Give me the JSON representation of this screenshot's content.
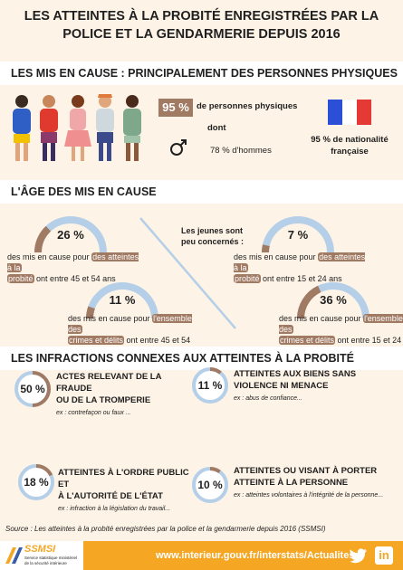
{
  "title": {
    "line1": "LES ATTEINTES À LA PROBITÉ ENREGISTRÉES PAR LA",
    "line2": "POLICE ET LA GENDARMERIE DEPUIS 2016"
  },
  "section1": {
    "heading": "LES MIS EN CAUSE : PRINCIPALEMENT DES PERSONNES PHYSIQUES",
    "physical_pct": "95 %",
    "physical_label": "de personnes physiques",
    "dont": "dont",
    "men_label": "78 % d'hommes",
    "nationality_line1": "95 % de nationalité",
    "nationality_line2": "française"
  },
  "section2": {
    "heading": "L'ÂGE DES MIS EN CAUSE",
    "youth_line1": "Les jeunes sont",
    "youth_line2": "peu concernés :",
    "gauges": [
      {
        "value": "26 %",
        "fraction": 0.26,
        "pre": "des mis en cause pour",
        "hl1": "des atteintes à la",
        "hl2": "probité",
        "post": "ont entre 45 et 54 ans"
      },
      {
        "value": "11 %",
        "fraction": 0.11,
        "pre": "des mis en cause pour",
        "hl1": "l'ensemble des",
        "hl2": "crimes et délits",
        "post": "ont entre 45 et 54 ans"
      },
      {
        "value": "7 %",
        "fraction": 0.07,
        "pre": "des mis en cause pour",
        "hl1": "des atteintes à la",
        "hl2": "probité",
        "post": "ont entre 15 et 24 ans"
      },
      {
        "value": "36 %",
        "fraction": 0.36,
        "pre": "des mis en cause pour",
        "hl1": "l'ensemble des",
        "hl2": "crimes et délits",
        "post": "ont entre 15 et 24 ans"
      }
    ]
  },
  "section3": {
    "heading": "LES INFRACTIONS CONNEXES AUX ATTEINTES À LA PROBITÉ",
    "items": [
      {
        "value": "50 %",
        "fraction": 0.5,
        "title1": "ACTES RELEVANT DE LA FRAUDE",
        "title2": "OU DE LA TROMPERIE",
        "example": "ex : contrefaçon ou faux ..."
      },
      {
        "value": "11 %",
        "fraction": 0.11,
        "title1": "ATTEINTES AUX BIENS SANS",
        "title2": "VIOLENCE NI MENACE",
        "example": "ex : abus de confiance..."
      },
      {
        "value": "18 %",
        "fraction": 0.18,
        "title1": "ATTEINTES À L'ORDRE PUBLIC ET",
        "title2": "À L'AUTORITÉ DE L'ÉTAT",
        "example": "ex : infraction à la législation du travail..."
      },
      {
        "value": "10 %",
        "fraction": 0.1,
        "title1": "ATTEINTES OU VISANT À PORTER",
        "title2": "ATTEINTE À LA PERSONNE",
        "example": "ex : atteintes volontaires à l'intégrité de la personne..."
      }
    ]
  },
  "source": "Source : Les atteintes à la probité enregistrées par la police et la gendarmerie depuis 2016 (SSMSI)",
  "footer": {
    "logo_name": "SSMSI",
    "logo_line1": "Service statistique ministériel",
    "logo_line2": "de la sécurité intérieure",
    "url": "www.interieur.gouv.fr/interstats/Actualites",
    "twitter_icon": "twitter-icon",
    "linkedin_icon": "linkedin-icon",
    "linkedin_text": "in"
  },
  "colors": {
    "brown": "#a07a63",
    "blue": "#b5cfe8",
    "orange": "#f5a623",
    "background": "#fdf3e6"
  }
}
